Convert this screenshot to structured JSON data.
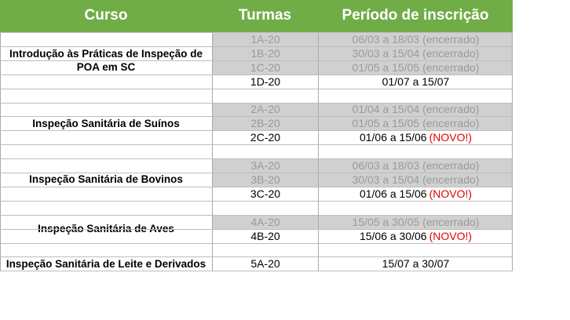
{
  "headers": {
    "course": "Curso",
    "class": "Turmas",
    "period": "Período de inscrição"
  },
  "courses": [
    {
      "name": "Introdução às Práticas de Inspeção de POA em SC",
      "rows": [
        {
          "code": "1A-20",
          "period": "06/03 a 18/03 (encerrado)",
          "closed": true
        },
        {
          "code": "1B-20",
          "period": "30/03 a 15/04 (encerrado)",
          "closed": true
        },
        {
          "code": "1C-20",
          "period": "01/05 a 15/05 (encerrado)",
          "closed": true
        },
        {
          "code": "1D-20",
          "period": "01/07 a 15/07",
          "closed": false
        }
      ]
    },
    {
      "name": "Inspeção Sanitária de Suínos",
      "rows": [
        {
          "code": "2A-20",
          "period": "01/04 a 15/04 (encerrado)",
          "closed": true
        },
        {
          "code": "2B-20",
          "period": "01/05 a 15/05 (encerrado)",
          "closed": true
        },
        {
          "code": "2C-20",
          "period": "01/06 a 15/06",
          "closed": false,
          "badge": "(NOVO!)"
        }
      ]
    },
    {
      "name": "Inspeção Sanitária de Bovinos",
      "rows": [
        {
          "code": "3A-20",
          "period": "06/03 a 18/03 (encerrado)",
          "closed": true
        },
        {
          "code": "3B-20",
          "period": "30/03 a 15/04 (encerrado)",
          "closed": true
        },
        {
          "code": "3C-20",
          "period": "01/06 a 15/06",
          "closed": false,
          "badge": "(NOVO!)"
        }
      ]
    },
    {
      "name": "Inspeção Sanitária de Aves",
      "rows": [
        {
          "code": "4A-20",
          "period": "15/05 a 30/05 (encerrado)",
          "closed": true
        },
        {
          "code": "4B-20",
          "period": "15/06 a 30/06",
          "closed": false,
          "badge": "(NOVO!)"
        }
      ]
    },
    {
      "name": "Inspeção Sanitária de Leite e Derivados",
      "rows": [
        {
          "code": "5A-20",
          "period": "15/07 a 30/07",
          "closed": false
        }
      ]
    }
  ],
  "colors": {
    "header": "#70ad47",
    "closed_bg": "#d0d0d0",
    "closed_text": "#9a9a9a",
    "novo": "#e00000"
  }
}
